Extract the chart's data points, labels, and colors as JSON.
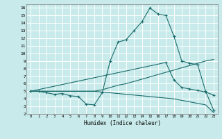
{
  "title": "",
  "xlabel": "Humidex (Indice chaleur)",
  "background_color": "#c8eaea",
  "grid_color": "#ffffff",
  "line_color": "#1a6b6b",
  "xlim": [
    -0.5,
    23.5
  ],
  "ylim": [
    2,
    16.5
  ],
  "xticks": [
    0,
    1,
    2,
    3,
    4,
    5,
    6,
    7,
    8,
    9,
    10,
    11,
    12,
    13,
    14,
    15,
    16,
    17,
    18,
    19,
    20,
    21,
    22,
    23
  ],
  "yticks": [
    2,
    3,
    4,
    5,
    6,
    7,
    8,
    9,
    10,
    11,
    12,
    13,
    14,
    15,
    16
  ],
  "line1_x": [
    0,
    1,
    2,
    3,
    4,
    5,
    6,
    7,
    8,
    9,
    10,
    11,
    12,
    13,
    14,
    15,
    16,
    17,
    18,
    19,
    20,
    21,
    22,
    23
  ],
  "line1_y": [
    5,
    5,
    4.8,
    4.6,
    4.7,
    4.4,
    4.3,
    3.3,
    3.2,
    4.8,
    9.0,
    11.5,
    11.8,
    13.0,
    14.2,
    16.0,
    15.2,
    15.0,
    12.3,
    9.0,
    8.7,
    8.5,
    5.0,
    2.5
  ],
  "line1_markers": [
    0,
    1,
    2,
    3,
    4,
    5,
    6,
    7,
    8,
    9,
    10,
    11,
    12,
    13,
    14,
    15,
    16,
    17,
    18,
    19,
    20,
    21,
    22,
    23
  ],
  "line2_x": [
    0,
    1,
    2,
    3,
    4,
    5,
    6,
    7,
    8,
    9,
    10,
    11,
    12,
    13,
    14,
    15,
    16,
    17,
    18,
    19,
    20,
    21,
    22,
    23
  ],
  "line2_y": [
    5,
    5,
    5,
    5,
    5,
    5,
    5,
    5,
    5,
    5.2,
    5.5,
    5.8,
    6.0,
    6.3,
    6.6,
    6.9,
    7.2,
    7.5,
    7.8,
    8.1,
    8.4,
    8.7,
    9.0,
    9.2
  ],
  "line3_x": [
    0,
    1,
    2,
    3,
    4,
    5,
    6,
    7,
    8,
    9,
    10,
    11,
    12,
    13,
    14,
    15,
    16,
    17,
    18,
    19,
    20,
    21,
    22,
    23
  ],
  "line3_y": [
    5,
    5,
    5,
    5,
    5,
    5,
    5,
    5,
    5,
    4.9,
    4.8,
    4.7,
    4.6,
    4.5,
    4.4,
    4.3,
    4.2,
    4.1,
    4.0,
    3.8,
    3.6,
    3.4,
    3.2,
    2.2
  ],
  "line4_x": [
    0,
    17,
    18,
    19,
    20,
    21,
    22,
    23
  ],
  "line4_y": [
    5,
    8.8,
    6.5,
    5.5,
    5.3,
    5.1,
    4.9,
    4.5
  ]
}
